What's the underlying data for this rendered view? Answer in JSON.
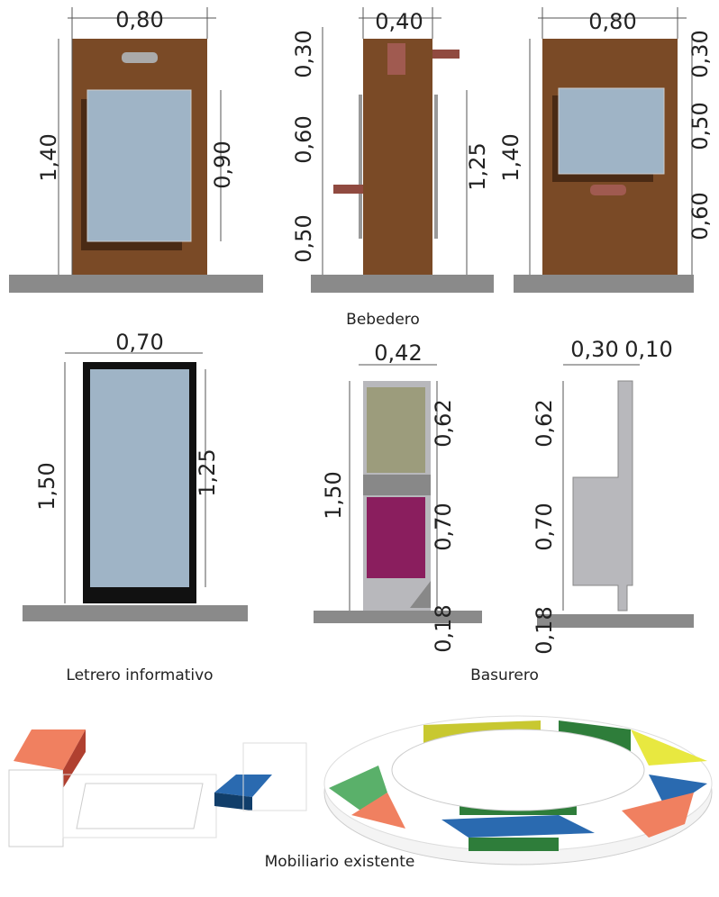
{
  "panels": [
    {
      "dims": [
        "0,80",
        "1,40",
        "0,90"
      ]
    },
    {
      "dims": [
        "0,40",
        "0,30",
        "0,60",
        "0,50",
        "1,25"
      ]
    },
    {
      "dims": [
        "0,80",
        "1,40",
        "0,30",
        "0,50",
        "0,60"
      ]
    },
    {
      "dims": [
        "0,70",
        "1,50",
        "1,25"
      ]
    },
    {
      "dims": [
        "0,42",
        "1,50",
        "0,62",
        "0,70",
        "0,18"
      ]
    },
    {
      "dims": [
        "0,30",
        "0,10",
        "0,62",
        "0,70",
        "0,18"
      ]
    }
  ],
  "captions": [
    "Bebedero",
    "Letrero informativo",
    "Basurero",
    "Mobiliario existente"
  ]
}
